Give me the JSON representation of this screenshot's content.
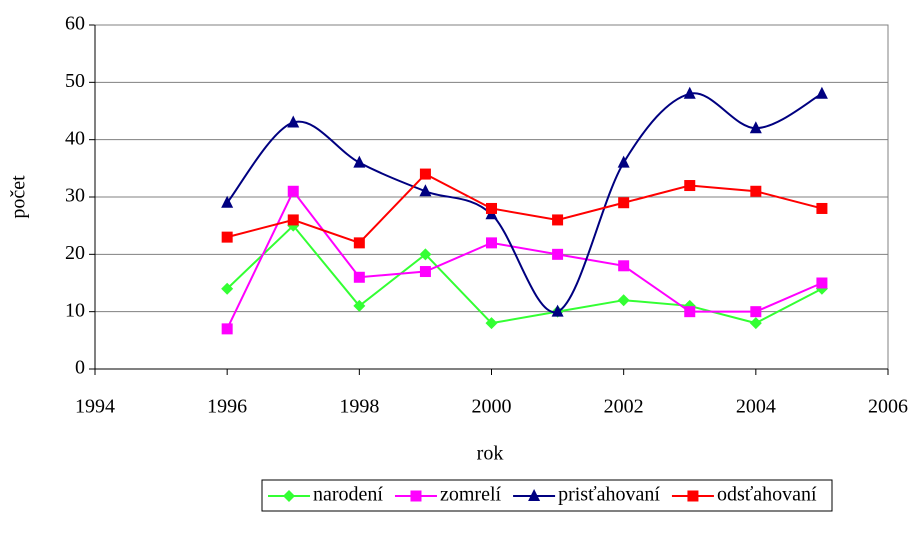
{
  "chart_data": {
    "type": "line",
    "xlabel": "rok",
    "ylabel": "počet",
    "xlim": [
      1994,
      2006
    ],
    "xticks": [
      1994,
      1996,
      1998,
      2000,
      2002,
      2004,
      2006
    ],
    "ylim": [
      0,
      60
    ],
    "yticks": [
      0,
      10,
      20,
      30,
      40,
      50,
      60
    ],
    "grid": true,
    "legend": "bottom",
    "x": [
      1996,
      1997,
      1998,
      1999,
      2000,
      2001,
      2002,
      2003,
      2004,
      2005
    ],
    "series": [
      {
        "name": "narodení",
        "color": "#33ff33",
        "marker": "diamond",
        "values": [
          14,
          25,
          11,
          20,
          8,
          10,
          12,
          11,
          8,
          14
        ]
      },
      {
        "name": "zomrelí",
        "color": "#ff00ff",
        "marker": "square",
        "values": [
          7,
          31,
          16,
          17,
          22,
          20,
          18,
          10,
          10,
          15
        ]
      },
      {
        "name": "prisťahovaní",
        "color": "#000080",
        "marker": "triangle",
        "smooth": true,
        "values": [
          29,
          43,
          36,
          31,
          27,
          10,
          36,
          48,
          42,
          48
        ]
      },
      {
        "name": "odsťahovaní",
        "color": "#ff0000",
        "marker": "square",
        "values": [
          23,
          26,
          22,
          34,
          28,
          26,
          29,
          32,
          31,
          28
        ]
      }
    ]
  }
}
